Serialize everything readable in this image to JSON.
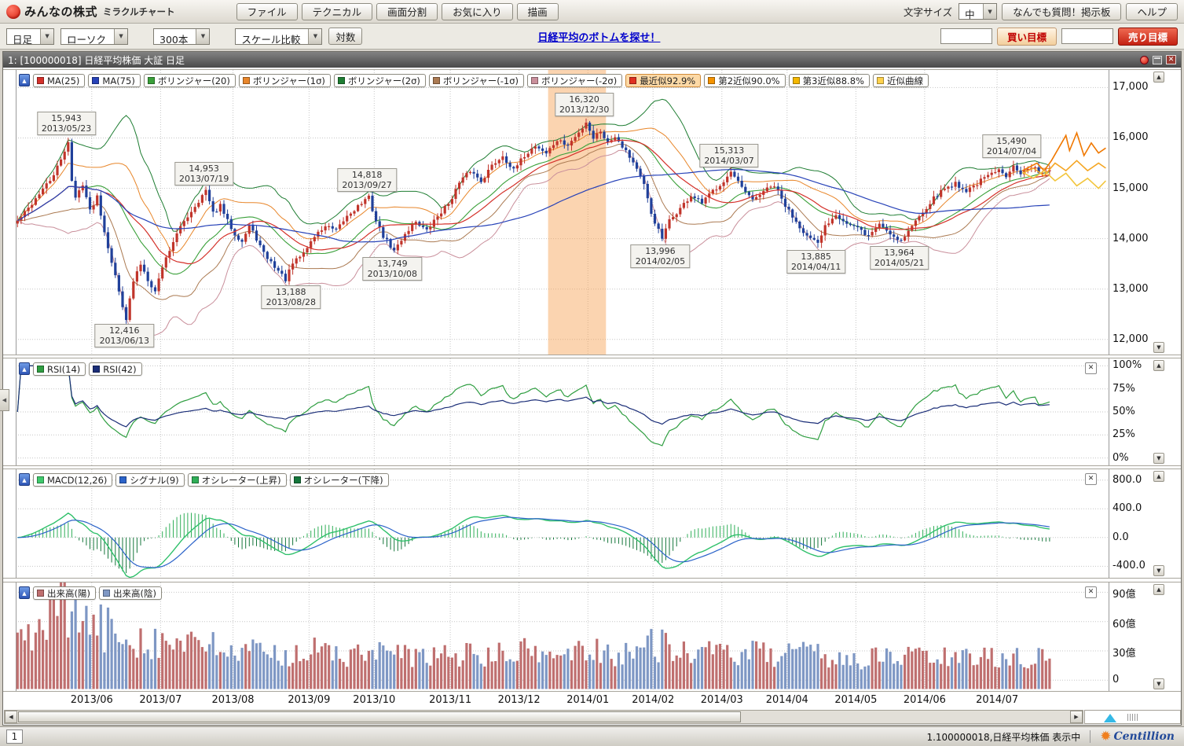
{
  "header": {
    "brand": "みんなの株式",
    "brand_sub": "ミラクルチャート",
    "menu_buttons": [
      "ファイル",
      "テクニカル",
      "画面分割",
      "お気に入り",
      "描画"
    ],
    "font_size_label": "文字サイズ",
    "font_size_value": "中",
    "qa_button": "なんでも質問！掲示板",
    "help_button": "ヘルプ"
  },
  "toolbar": {
    "timeframe": "日足",
    "chart_type": "ローソク",
    "bar_count": "300本",
    "scale_compare": "スケール比較",
    "log_button": "対数",
    "campaign_link": "日経平均のボトムを探せ！",
    "buy_target_label": "買い目標",
    "sell_target_label": "売り目標",
    "buy_target_value": "",
    "sell_target_value": ""
  },
  "chart_window": {
    "title": "1:  [100000018] 日経平均株価 大証 日足"
  },
  "main_chart": {
    "legends": [
      {
        "label": "MA(25)",
        "color": "#d4312a"
      },
      {
        "label": "MA(75)",
        "color": "#2742b8"
      },
      {
        "label": "ボリンジャー(20)",
        "color": "#3aa03a"
      },
      {
        "label": "ボリンジャー(1σ)",
        "color": "#e8862a"
      },
      {
        "label": "ボリンジャー(2σ)",
        "color": "#1e7d32"
      },
      {
        "label": "ボリンジャー(-1σ)",
        "color": "#ab7a52"
      },
      {
        "label": "ボリンジャー(-2σ)",
        "color": "#c98f9b"
      },
      {
        "label": "最近似92.9%",
        "color": "#e03020",
        "highlight": true
      },
      {
        "label": "第2近似90.0%",
        "color": "#f59300"
      },
      {
        "label": "第3近似88.8%",
        "color": "#f5b800"
      },
      {
        "label": "近似曲線",
        "color": "#ffd24d"
      }
    ]
  },
  "rsi_panel": {
    "legends": [
      {
        "label": "RSI(14)",
        "color": "#2f9e41"
      },
      {
        "label": "RSI(42)",
        "color": "#1b2e78"
      }
    ]
  },
  "macd_panel": {
    "legends": [
      {
        "label": "MACD(12,26)",
        "color": "#3fca6c"
      },
      {
        "label": "シグナル(9)",
        "color": "#2b63c9"
      },
      {
        "label": "オシレーター(上昇)",
        "color": "#2fae57"
      },
      {
        "label": "オシレーター(下降)",
        "color": "#15763b"
      }
    ]
  },
  "volume_panel": {
    "legends": [
      {
        "label": "出来高(陽)",
        "color": "#bf6f6f"
      },
      {
        "label": "出来高(陰)",
        "color": "#7e97c4"
      }
    ]
  },
  "statusbar": {
    "page": "1",
    "status_text": "1.100000018,日経平均株価 表示中",
    "brand": "Centillion"
  },
  "chart_data": {
    "type": "candlestick",
    "seed": 42,
    "noise": 90,
    "total_bars": 302,
    "candle_count": 286,
    "highlight": {
      "from": 147,
      "to": 163
    },
    "months": [
      {
        "label": "2013/06",
        "bar": 21
      },
      {
        "label": "2013/07",
        "bar": 40
      },
      {
        "label": "2013/08",
        "bar": 60
      },
      {
        "label": "2013/09",
        "bar": 81
      },
      {
        "label": "2013/10",
        "bar": 99
      },
      {
        "label": "2013/11",
        "bar": 120
      },
      {
        "label": "2013/12",
        "bar": 139
      },
      {
        "label": "2014/01",
        "bar": 158
      },
      {
        "label": "2014/02",
        "bar": 176
      },
      {
        "label": "2014/03",
        "bar": 195
      },
      {
        "label": "2014/04",
        "bar": 213
      },
      {
        "label": "2014/05",
        "bar": 232
      },
      {
        "label": "2014/06",
        "bar": 251
      },
      {
        "label": "2014/07",
        "bar": 271
      }
    ],
    "panels": {
      "main": {
        "vmin": 11700,
        "vmax": 17350,
        "ticks": [
          {
            "v": 17000,
            "label": "17,000"
          },
          {
            "v": 16000,
            "label": "16,000"
          },
          {
            "v": 15000,
            "label": "15,000"
          },
          {
            "v": 14000,
            "label": "14,000"
          },
          {
            "v": 13000,
            "label": "13,000"
          },
          {
            "v": 12000,
            "label": "12,000"
          }
        ]
      },
      "rsi": {
        "vmin": -8,
        "vmax": 108,
        "ticks": [
          {
            "v": 100,
            "label": "100%"
          },
          {
            "v": 75,
            "label": "75%"
          },
          {
            "v": 50,
            "label": "50%"
          },
          {
            "v": 25,
            "label": "25%"
          },
          {
            "v": 0,
            "label": "0%"
          }
        ]
      },
      "macd": {
        "vmin": -560,
        "vmax": 950,
        "ticks": [
          {
            "v": 800,
            "label": "800.0"
          },
          {
            "v": 400,
            "label": "400.0"
          },
          {
            "v": 0,
            "label": "0.0"
          },
          {
            "v": -400,
            "label": "-400.0"
          }
        ]
      },
      "volume": {
        "vmin": -11,
        "vmax": 100,
        "ticks": [
          {
            "v": 90,
            "label": "90億"
          },
          {
            "v": 60,
            "label": "60億"
          },
          {
            "v": 30,
            "label": "30億"
          },
          {
            "v": 0,
            "label": "0"
          }
        ]
      }
    },
    "annotations": [
      {
        "price": "15,943",
        "date": "2013/05/23",
        "bar": 14,
        "value": 15943,
        "above": true
      },
      {
        "price": "12,416",
        "date": "2013/06/13",
        "bar": 30,
        "value": 12416,
        "above": false
      },
      {
        "price": "14,953",
        "date": "2013/07/19",
        "bar": 52,
        "value": 14953,
        "above": true
      },
      {
        "price": "13,188",
        "date": "2013/08/28",
        "bar": 76,
        "value": 13188,
        "above": false
      },
      {
        "price": "14,818",
        "date": "2013/09/27",
        "bar": 97,
        "value": 14818,
        "above": true
      },
      {
        "price": "13,749",
        "date": "2013/10/08",
        "bar": 104,
        "value": 13749,
        "above": false
      },
      {
        "price": "16,320",
        "date": "2013/12/30",
        "bar": 157,
        "value": 16320,
        "above": true
      },
      {
        "price": "13,996",
        "date": "2014/02/05",
        "bar": 178,
        "value": 13996,
        "above": false
      },
      {
        "price": "15,313",
        "date": "2014/03/07",
        "bar": 197,
        "value": 15313,
        "above": true
      },
      {
        "price": "13,885",
        "date": "2014/04/11",
        "bar": 221,
        "value": 13885,
        "above": false
      },
      {
        "price": "13,964",
        "date": "2014/05/21",
        "bar": 244,
        "value": 13964,
        "above": false
      },
      {
        "price": "15,490",
        "date": "2014/07/04",
        "bar": 275,
        "value": 15490,
        "above": true
      }
    ],
    "close_anchors": [
      [
        0,
        14350
      ],
      [
        3,
        14600
      ],
      [
        6,
        14900
      ],
      [
        9,
        15150
      ],
      [
        12,
        15550
      ],
      [
        14,
        15943
      ],
      [
        15,
        15150
      ],
      [
        16,
        14800
      ],
      [
        18,
        15100
      ],
      [
        20,
        14550
      ],
      [
        22,
        14850
      ],
      [
        24,
        14150
      ],
      [
        26,
        13550
      ],
      [
        28,
        12950
      ],
      [
        30,
        12416
      ],
      [
        32,
        13150
      ],
      [
        34,
        13500
      ],
      [
        36,
        13200
      ],
      [
        38,
        12950
      ],
      [
        40,
        13450
      ],
      [
        43,
        13950
      ],
      [
        46,
        14350
      ],
      [
        49,
        14650
      ],
      [
        52,
        14953
      ],
      [
        54,
        14500
      ],
      [
        56,
        14650
      ],
      [
        58,
        14350
      ],
      [
        60,
        14100
      ],
      [
        62,
        13950
      ],
      [
        64,
        14250
      ],
      [
        66,
        14000
      ],
      [
        68,
        13700
      ],
      [
        71,
        13450
      ],
      [
        74,
        13188
      ],
      [
        76,
        13500
      ],
      [
        79,
        13720
      ],
      [
        82,
        14050
      ],
      [
        85,
        14250
      ],
      [
        88,
        14150
      ],
      [
        91,
        14450
      ],
      [
        94,
        14650
      ],
      [
        97,
        14818
      ],
      [
        99,
        14350
      ],
      [
        101,
        14050
      ],
      [
        104,
        13749
      ],
      [
        107,
        14100
      ],
      [
        110,
        14350
      ],
      [
        113,
        14150
      ],
      [
        116,
        14450
      ],
      [
        119,
        14700
      ],
      [
        122,
        15100
      ],
      [
        125,
        15350
      ],
      [
        128,
        15150
      ],
      [
        131,
        15450
      ],
      [
        134,
        15650
      ],
      [
        137,
        15350
      ],
      [
        140,
        15650
      ],
      [
        143,
        15850
      ],
      [
        146,
        15700
      ],
      [
        149,
        15950
      ],
      [
        152,
        15850
      ],
      [
        155,
        16100
      ],
      [
        157,
        16320
      ],
      [
        159,
        16000
      ],
      [
        161,
        16150
      ],
      [
        163,
        15900
      ],
      [
        165,
        16050
      ],
      [
        168,
        15750
      ],
      [
        171,
        15400
      ],
      [
        173,
        15050
      ],
      [
        175,
        14500
      ],
      [
        178,
        13996
      ],
      [
        180,
        14350
      ],
      [
        183,
        14600
      ],
      [
        186,
        14850
      ],
      [
        189,
        14700
      ],
      [
        192,
        14950
      ],
      [
        195,
        15150
      ],
      [
        197,
        15313
      ],
      [
        200,
        15000
      ],
      [
        203,
        14750
      ],
      [
        206,
        14950
      ],
      [
        209,
        15050
      ],
      [
        212,
        14650
      ],
      [
        215,
        14350
      ],
      [
        218,
        14050
      ],
      [
        221,
        13885
      ],
      [
        223,
        14250
      ],
      [
        226,
        14500
      ],
      [
        229,
        14300
      ],
      [
        232,
        14200
      ],
      [
        235,
        14050
      ],
      [
        238,
        14300
      ],
      [
        241,
        14100
      ],
      [
        244,
        13964
      ],
      [
        247,
        14250
      ],
      [
        250,
        14550
      ],
      [
        253,
        14800
      ],
      [
        256,
        15000
      ],
      [
        259,
        15100
      ],
      [
        262,
        14950
      ],
      [
        265,
        15100
      ],
      [
        268,
        15250
      ],
      [
        271,
        15350
      ],
      [
        273,
        15250
      ],
      [
        275,
        15490
      ],
      [
        277,
        15300
      ],
      [
        280,
        15400
      ],
      [
        283,
        15320
      ],
      [
        285,
        15380
      ]
    ],
    "volume_anchors": [
      [
        0,
        38
      ],
      [
        5,
        55
      ],
      [
        10,
        72
      ],
      [
        13,
        85
      ],
      [
        16,
        72
      ],
      [
        20,
        60
      ],
      [
        25,
        55
      ],
      [
        30,
        52
      ],
      [
        35,
        46
      ],
      [
        40,
        42
      ],
      [
        50,
        38
      ],
      [
        60,
        32
      ],
      [
        70,
        28
      ],
      [
        80,
        33
      ],
      [
        90,
        27
      ],
      [
        100,
        30
      ],
      [
        110,
        25
      ],
      [
        120,
        29
      ],
      [
        130,
        26
      ],
      [
        140,
        31
      ],
      [
        150,
        28
      ],
      [
        157,
        35
      ],
      [
        165,
        30
      ],
      [
        172,
        34
      ],
      [
        178,
        42
      ],
      [
        185,
        31
      ],
      [
        195,
        28
      ],
      [
        200,
        31
      ],
      [
        210,
        26
      ],
      [
        220,
        29
      ],
      [
        230,
        23
      ],
      [
        240,
        25
      ],
      [
        250,
        27
      ],
      [
        260,
        23
      ],
      [
        270,
        27
      ],
      [
        280,
        25
      ],
      [
        285,
        24
      ]
    ],
    "forecasts": [
      {
        "color": "#f07800",
        "points": [
          [
            278,
            15350
          ],
          [
            282,
            15500
          ],
          [
            284,
            15350
          ],
          [
            286,
            15550
          ],
          [
            288,
            15800
          ],
          [
            290,
            16050
          ],
          [
            291,
            15750
          ],
          [
            293,
            16100
          ],
          [
            295,
            15650
          ],
          [
            297,
            15900
          ],
          [
            299,
            15700
          ],
          [
            301,
            15800
          ]
        ]
      },
      {
        "color": "#f5a623",
        "points": [
          [
            278,
            15300
          ],
          [
            281,
            15400
          ],
          [
            284,
            15250
          ],
          [
            287,
            15500
          ],
          [
            290,
            15350
          ],
          [
            293,
            15550
          ],
          [
            296,
            15350
          ],
          [
            299,
            15500
          ],
          [
            301,
            15400
          ]
        ]
      },
      {
        "color": "#f2c53d",
        "points": [
          [
            278,
            15320
          ],
          [
            281,
            15200
          ],
          [
            284,
            15350
          ],
          [
            287,
            15150
          ],
          [
            290,
            15300
          ],
          [
            293,
            15050
          ],
          [
            296,
            15200
          ],
          [
            299,
            15000
          ],
          [
            301,
            15150
          ]
        ]
      }
    ],
    "colors": {
      "up": "#c1352b",
      "down": "#20409a",
      "volUp": "#bf6f6f",
      "volDown": "#7e97c4",
      "ma25": "#d4312a",
      "ma75": "#2742b8",
      "boll20": "#3aa03a",
      "boll1": "#e8862a",
      "boll2": "#1e7d32",
      "bollm1": "#ab7a52",
      "bollm2": "#c98f9b",
      "rsi14": "#2f9e41",
      "rsi42": "#1b2e78",
      "macd": "#2fc06a",
      "signal": "#2b63c9",
      "oscUp": "#2fae57",
      "oscDown": "#15763b",
      "highlight": "rgba(246,160,80,0.45)"
    }
  }
}
